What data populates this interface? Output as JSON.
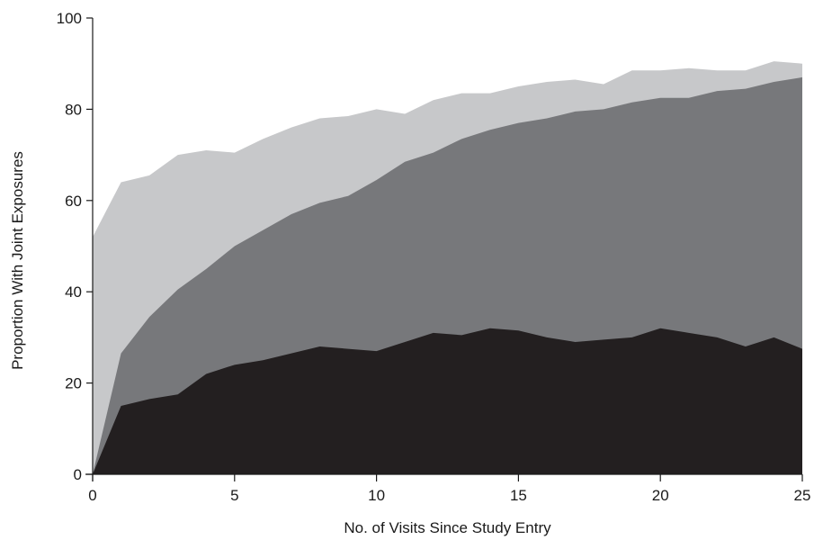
{
  "chart_data": {
    "type": "area",
    "stacked": true,
    "title": "",
    "xlabel": "No. of Visits Since Study Entry",
    "ylabel": "Proportion With Joint Exposures",
    "xlim": [
      0,
      25
    ],
    "ylim": [
      0,
      100
    ],
    "xticks": [
      "0",
      "5",
      "10",
      "15",
      "20",
      "25"
    ],
    "yticks": [
      "0",
      "20",
      "40",
      "60",
      "80",
      "100"
    ],
    "grid": false,
    "legend": "none",
    "x": [
      0,
      1,
      2,
      3,
      4,
      5,
      6,
      7,
      8,
      9,
      10,
      11,
      12,
      13,
      14,
      15,
      16,
      17,
      18,
      19,
      20,
      21,
      22,
      23,
      24,
      25
    ],
    "series": [
      {
        "color": "#231f20",
        "values": [
          0,
          15,
          16.5,
          17.5,
          22,
          24,
          25,
          26.5,
          28,
          27.5,
          27,
          29,
          31,
          30.5,
          32,
          31.5,
          30,
          29,
          29.5,
          30,
          32,
          31,
          30,
          28,
          30,
          27.5
        ]
      },
      {
        "color": "#77787b",
        "values": [
          0,
          26.5,
          34.5,
          40.5,
          45,
          50,
          53.5,
          57,
          59.5,
          61,
          64.5,
          68.5,
          70.5,
          73.5,
          75.5,
          77,
          78,
          79.5,
          80,
          81.5,
          82.5,
          82.5,
          84,
          84.5,
          86,
          87
        ]
      },
      {
        "color": "#c7c8ca",
        "values": [
          52,
          64,
          65.5,
          70,
          71,
          70.5,
          73.5,
          76,
          78,
          78.5,
          80,
          79,
          82,
          83.5,
          83.5,
          85,
          86,
          86.5,
          85.5,
          88.5,
          88.5,
          89,
          88.5,
          88.5,
          90.5,
          90
        ]
      }
    ]
  }
}
